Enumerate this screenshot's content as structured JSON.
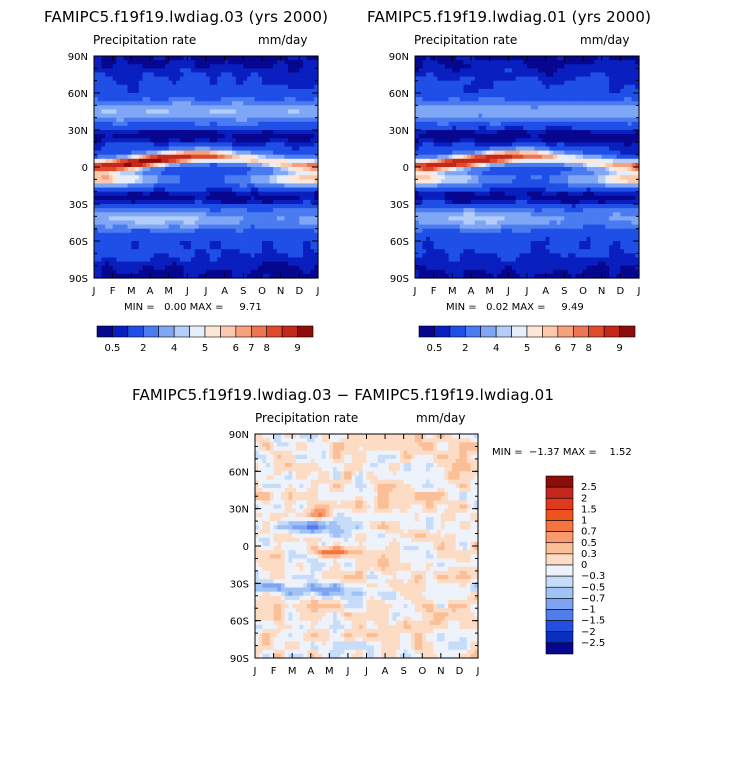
{
  "chart_data": [
    {
      "type": "heatmap",
      "title": "FAMIPC5.f19f19.lwdiag.03 (yrs 2000)",
      "left_label": "Precipitation rate",
      "right_label": "mm/day",
      "x_ticks": [
        "J",
        "F",
        "M",
        "A",
        "M",
        "J",
        "J",
        "A",
        "S",
        "O",
        "N",
        "D",
        "J"
      ],
      "y_ticks": [
        "90N",
        "60N",
        "30N",
        "0",
        "30S",
        "60S",
        "90S"
      ],
      "min_label": "MIN =",
      "min_value": "0.00",
      "max_label": "MAX =",
      "max_value": "9.71",
      "colorbar_labels": [
        "0.5",
        "2",
        "4",
        "5",
        "6",
        "7",
        "8",
        "9"
      ],
      "colorbar_colors": [
        "#06068f",
        "#0a1fc0",
        "#1f4fe6",
        "#4a7bf0",
        "#7fa7f5",
        "#b4cdf9",
        "#e6eefc",
        "#fde7d8",
        "#fbc9ad",
        "#f6a17d",
        "#ee7553",
        "#df4a2d",
        "#c4281a",
        "#8e0c0a"
      ],
      "color_levels": [
        0.5,
        1,
        2,
        3,
        4,
        4.5,
        5,
        5.5,
        6,
        6.5,
        7,
        8,
        9
      ],
      "x_range": [
        0,
        12
      ],
      "y_range": [
        -90,
        90
      ],
      "field_model": "climatology_a"
    },
    {
      "type": "heatmap",
      "title": "FAMIPC5.f19f19.lwdiag.01 (yrs 2000)",
      "left_label": "Precipitation rate",
      "right_label": "mm/day",
      "x_ticks": [
        "J",
        "F",
        "M",
        "A",
        "M",
        "J",
        "J",
        "A",
        "S",
        "O",
        "N",
        "D",
        "J"
      ],
      "y_ticks": [
        "90N",
        "60N",
        "30N",
        "0",
        "30S",
        "60S",
        "90S"
      ],
      "min_label": "MIN =",
      "min_value": "0.02",
      "max_label": "MAX =",
      "max_value": "9.49",
      "colorbar_labels": [
        "0.5",
        "2",
        "4",
        "5",
        "6",
        "7",
        "8",
        "9"
      ],
      "colorbar_colors": [
        "#06068f",
        "#0a1fc0",
        "#1f4fe6",
        "#4a7bf0",
        "#7fa7f5",
        "#b4cdf9",
        "#e6eefc",
        "#fde7d8",
        "#fbc9ad",
        "#f6a17d",
        "#ee7553",
        "#df4a2d",
        "#c4281a",
        "#8e0c0a"
      ],
      "color_levels": [
        0.5,
        1,
        2,
        3,
        4,
        4.5,
        5,
        5.5,
        6,
        6.5,
        7,
        8,
        9
      ],
      "x_range": [
        0,
        12
      ],
      "y_range": [
        -90,
        90
      ],
      "field_model": "climatology_b"
    },
    {
      "type": "heatmap",
      "title": "FAMIPC5.f19f19.lwdiag.03 − FAMIPC5.f19f19.lwdiag.01",
      "left_label": "Precipitation rate",
      "right_label": "mm/day",
      "x_ticks": [
        "J",
        "F",
        "M",
        "A",
        "M",
        "J",
        "J",
        "A",
        "S",
        "O",
        "N",
        "D",
        "J"
      ],
      "y_ticks": [
        "90N",
        "60N",
        "30N",
        "0",
        "30S",
        "60S",
        "90S"
      ],
      "min_label": "MIN =",
      "min_value": "−1.37",
      "max_label": "MAX =",
      "max_value": "1.52",
      "colorbar_labels": [
        "2.5",
        "2",
        "1.5",
        "1",
        "0.7",
        "0.5",
        "0.3",
        "0",
        "−0.3",
        "−0.5",
        "−0.7",
        "−1",
        "−1.5",
        "−2",
        "−2.5"
      ],
      "colorbar_colors": [
        "#8e0c0a",
        "#c4281a",
        "#df3a1e",
        "#f0521f",
        "#f57540",
        "#f89a6b",
        "#fbbf98",
        "#fddcc6",
        "#eef3fb",
        "#c6dcf8",
        "#a1c2f5",
        "#7da4f1",
        "#4f7ded",
        "#2050e2",
        "#0a2ec0",
        "#06068f"
      ],
      "color_levels": [
        -2.5,
        -2,
        -1.5,
        -1,
        -0.7,
        -0.5,
        -0.3,
        0,
        0.3,
        0.5,
        0.7,
        1,
        1.5,
        2,
        2.5
      ],
      "x_range": [
        0,
        12
      ],
      "y_range": [
        -90,
        90
      ],
      "field_model": "difference"
    }
  ]
}
